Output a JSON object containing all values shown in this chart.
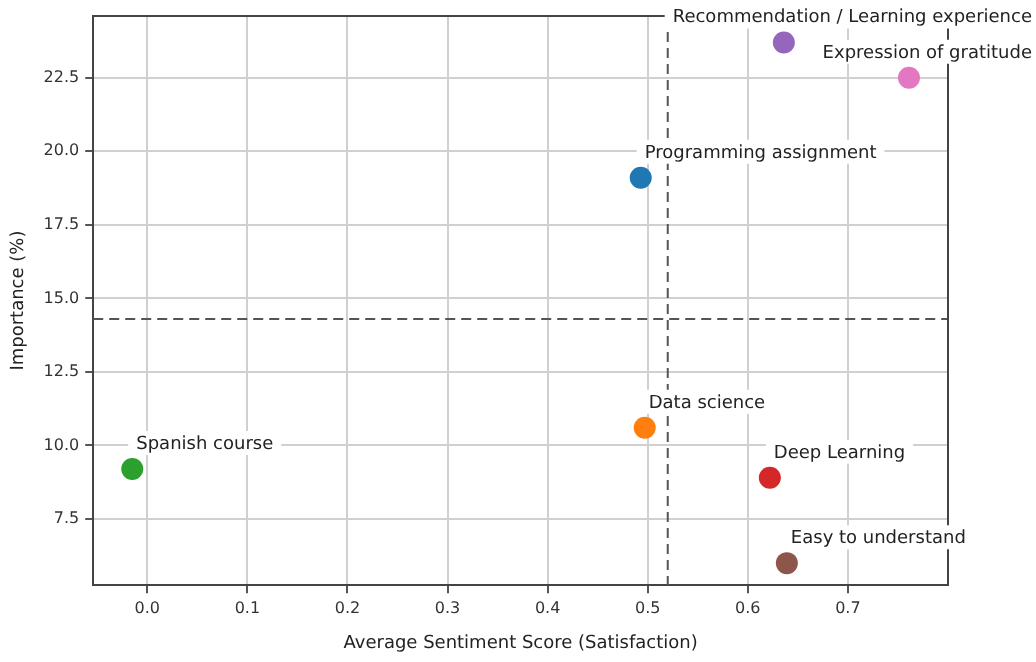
{
  "chart_data": {
    "type": "scatter",
    "xlabel": "Average Sentiment Score (Satisfaction)",
    "ylabel": "Importance (%)",
    "series": [
      {
        "name": "Spanish course",
        "color": "#2ca02c",
        "x": [
          -0.015
        ],
        "values": [
          9.2
        ]
      },
      {
        "name": "Programming assignment",
        "color": "#1f77b4",
        "x": [
          0.493
        ],
        "values": [
          19.1
        ]
      },
      {
        "name": "Data science",
        "color": "#ff7f0e",
        "x": [
          0.497
        ],
        "values": [
          10.6
        ]
      },
      {
        "name": "Deep Learning",
        "color": "#d62728",
        "x": [
          0.622
        ],
        "values": [
          8.9
        ]
      },
      {
        "name": "Easy to understand",
        "color": "#8c564b",
        "x": [
          0.639
        ],
        "values": [
          6.0
        ]
      },
      {
        "name": "Recommendation / Learning experience",
        "color": "#9467bd",
        "x": [
          0.636
        ],
        "values": [
          23.7
        ]
      },
      {
        "name": "Expression of gratitude",
        "color": "#e377c2",
        "x": [
          0.761
        ],
        "values": [
          22.5
        ]
      }
    ],
    "xlim": [
      -0.054,
      0.8
    ],
    "ylim": [
      5.25,
      24.6
    ],
    "xticks": [
      {
        "value": 0,
        "label": "0.0"
      },
      {
        "value": 0.1,
        "label": "0.1"
      },
      {
        "value": 0.2,
        "label": "0.2"
      },
      {
        "value": 0.3,
        "label": "0.3"
      },
      {
        "value": 0.4,
        "label": "0.4"
      },
      {
        "value": 0.5,
        "label": "0.5"
      },
      {
        "value": 0.6,
        "label": "0.6"
      },
      {
        "value": 0.7,
        "label": "0.7"
      }
    ],
    "yticks": [
      {
        "value": 7.5,
        "label": "7.5"
      },
      {
        "value": 10,
        "label": "10.0"
      },
      {
        "value": 12.5,
        "label": "12.5"
      },
      {
        "value": 15,
        "label": "15.0"
      },
      {
        "value": 17.5,
        "label": "17.5"
      },
      {
        "value": 20,
        "label": "20.0"
      },
      {
        "value": 22.5,
        "label": "22.5"
      }
    ],
    "ref_lines": [
      {
        "axis": "x",
        "value": 0.52,
        "color": "#555555",
        "line_style": "dashed"
      },
      {
        "axis": "y",
        "value": 14.3,
        "color": "#555555",
        "line_style": "dashed"
      }
    ],
    "grid": true,
    "legend": false,
    "marker": "circle"
  }
}
